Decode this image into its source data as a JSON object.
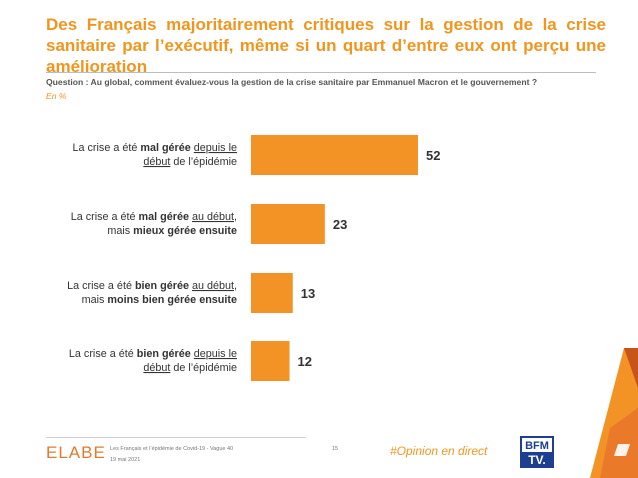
{
  "title": "Des Français majoritairement critiques sur la gestion de la crise sanitaire par l’exécutif, même si un quart d’entre eux ont perçu une amélioration",
  "question": "Question : Au global, comment évaluez-vous la gestion de la crise sanitaire par Emmanuel Macron et le gouvernement ?",
  "unit": "En %",
  "colors": {
    "accent": "#f0961e",
    "bar": "#f39326"
  },
  "chart_data": {
    "type": "bar",
    "orientation": "horizontal",
    "categories": [
      "La crise a été mal gérée depuis le début de l’épidémie",
      "La crise a été mal gérée au début, mais mieux gérée ensuite",
      "La crise a été bien gérée au début, mais moins bien gérée ensuite",
      "La crise a été bien gérée depuis le début de l’épidémie"
    ],
    "category_lines": [
      [
        [
          {
            "t": "La crise a été "
          },
          {
            "t": "mal gérée",
            "b": true
          },
          {
            "t": " "
          },
          {
            "t": "depuis le",
            "u": true
          }
        ],
        [
          {
            "t": "début",
            "u": true
          },
          {
            "t": " de l’épidémie"
          }
        ]
      ],
      [
        [
          {
            "t": "La crise a été "
          },
          {
            "t": "mal gérée",
            "b": true
          },
          {
            "t": " "
          },
          {
            "t": "au début",
            "u": true
          },
          {
            "t": ","
          }
        ],
        [
          {
            "t": "mais "
          },
          {
            "t": "mieux gérée ensuite",
            "b": true
          }
        ]
      ],
      [
        [
          {
            "t": "La crise a été "
          },
          {
            "t": "bien gérée",
            "b": true
          },
          {
            "t": " "
          },
          {
            "t": "au début",
            "u": true
          },
          {
            "t": ","
          }
        ],
        [
          {
            "t": "mais "
          },
          {
            "t": "moins bien gérée ensuite",
            "b": true
          }
        ]
      ],
      [
        [
          {
            "t": "La crise a été "
          },
          {
            "t": "bien gérée",
            "b": true
          },
          {
            "t": " "
          },
          {
            "t": "depuis le",
            "u": true
          }
        ],
        [
          {
            "t": "début",
            "u": true
          },
          {
            "t": " de l’épidémie"
          }
        ]
      ]
    ],
    "values": [
      52,
      23,
      13,
      12
    ],
    "xlim": [
      0,
      100
    ],
    "grid": false,
    "legend": "none"
  },
  "footer": {
    "logo_text": "ELABE",
    "source": "Les Français et l’épidémie de Covid-19 - Vague 40",
    "date": "19 mai 2021",
    "page": "15",
    "hashtag": "#Opinion en direct",
    "channel_logo": "BFM TV"
  }
}
